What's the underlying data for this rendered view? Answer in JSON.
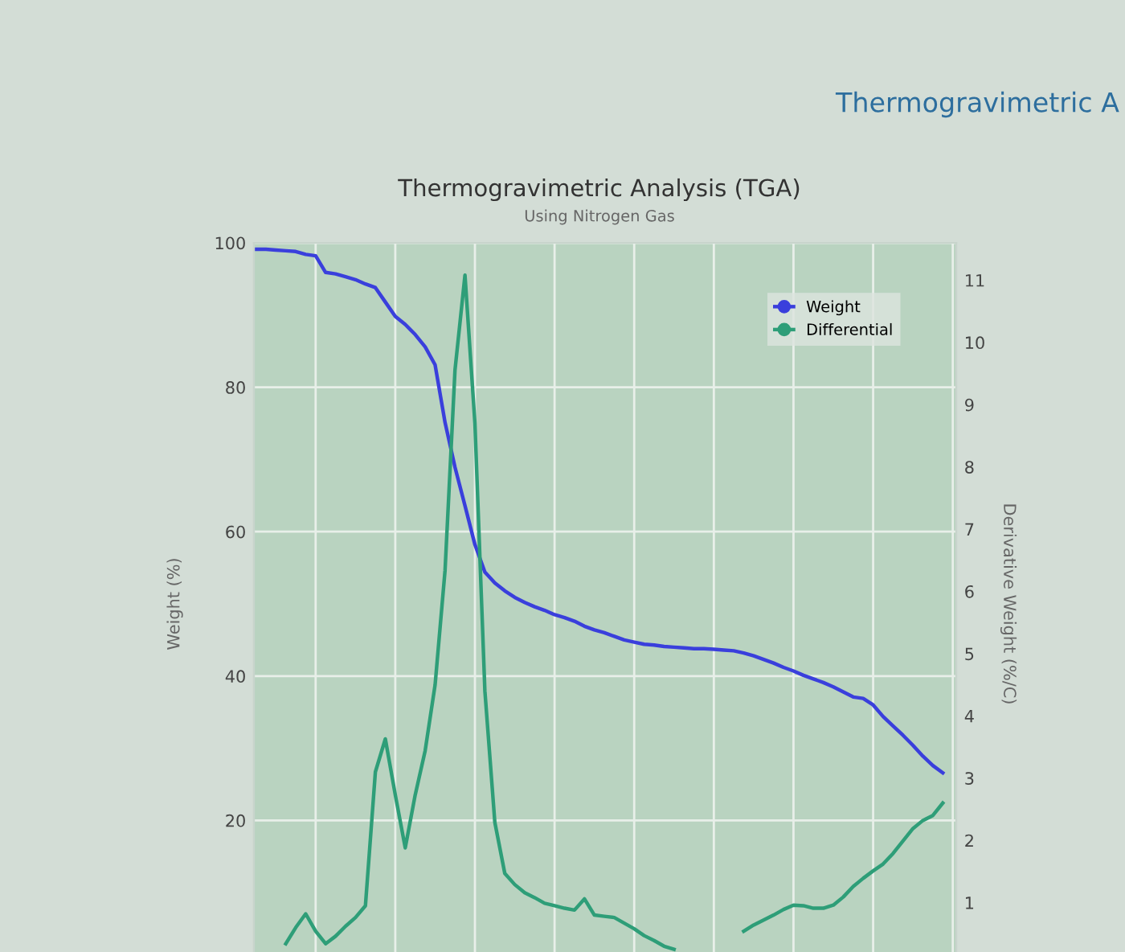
{
  "chart_data": {
    "type": "line",
    "title": "Thermogravimetric Analysis (TGA)",
    "subtitle": "Using Nitrogen Gas",
    "ylabel": "Weight (%)",
    "y2label": "Derivative Weight (%/C)",
    "annotations": [
      "Thermogravimetric A"
    ],
    "categories": [
      null,
      null,
      null,
      null,
      null,
      null,
      null,
      null,
      null,
      null,
      null,
      null,
      null,
      null,
      null,
      null,
      null,
      null,
      null,
      null,
      null,
      null,
      null,
      null,
      null,
      null,
      null,
      null,
      null,
      null,
      null,
      null,
      null,
      null,
      null,
      null,
      null,
      null,
      null,
      null,
      null,
      null,
      null,
      null,
      null,
      null,
      null,
      null,
      null,
      null,
      null,
      null,
      null,
      null,
      null,
      null,
      null,
      null,
      null,
      null,
      null,
      null,
      null,
      null,
      null,
      null,
      null,
      null,
      null,
      null,
      null
    ],
    "series": [
      {
        "name": "Weight",
        "color": "#3a3fdc",
        "values": [
          99.1,
          99.1,
          99.0,
          98.9,
          98.8,
          98.4,
          98.2,
          95.9,
          95.7,
          95.3,
          94.9,
          94.3,
          93.8,
          91.8,
          89.8,
          88.7,
          87.3,
          85.6,
          83.1,
          75.1,
          68.9,
          63.6,
          58.2,
          54.4,
          52.9,
          51.8,
          50.9,
          50.2,
          49.6,
          49.1,
          48.5,
          48.1,
          47.6,
          46.9,
          46.4,
          46.0,
          45.5,
          45.0,
          44.7,
          44.4,
          44.3,
          44.1,
          44.0,
          43.9,
          43.8,
          43.8,
          43.7,
          43.6,
          43.5,
          43.2,
          42.8,
          42.3,
          41.8,
          41.2,
          40.7,
          40.1,
          39.6,
          39.1,
          38.5,
          37.8,
          37.1,
          36.9,
          36.0,
          34.4,
          33.1,
          31.8,
          30.4,
          28.9,
          27.6,
          26.6,
          null
        ]
      },
      {
        "name": "Differential",
        "color": "#2e9e78",
        "axis": "y2",
        "values": [
          null,
          null,
          null,
          0.34,
          0.6,
          0.82,
          0.54,
          0.34,
          0.46,
          0.62,
          0.76,
          0.95,
          3.1,
          3.63,
          2.73,
          1.88,
          2.73,
          3.44,
          4.5,
          6.34,
          9.56,
          11.08,
          8.7,
          4.4,
          2.29,
          1.47,
          1.29,
          1.16,
          1.08,
          0.99,
          0.95,
          0.91,
          0.88,
          1.06,
          0.8,
          0.78,
          0.76,
          0.67,
          0.58,
          0.47,
          0.39,
          0.3,
          0.25,
          null,
          null,
          null,
          null,
          null,
          null,
          0.54,
          0.64,
          0.72,
          0.8,
          0.89,
          0.96,
          0.95,
          0.91,
          0.91,
          0.96,
          1.09,
          1.26,
          1.39,
          1.51,
          1.62,
          1.79,
          1.99,
          2.19,
          2.32,
          2.4,
          2.6,
          null
        ]
      }
    ],
    "ylim": [
      0,
      100
    ],
    "yticks": [
      20,
      40,
      60,
      80,
      100
    ],
    "y2lim": [
      0,
      11.6
    ],
    "y2ticks": [
      1,
      2,
      3,
      4,
      5,
      6,
      7,
      8,
      9,
      10,
      11
    ],
    "grid": true,
    "legend": "top right",
    "line_style": "solid"
  }
}
